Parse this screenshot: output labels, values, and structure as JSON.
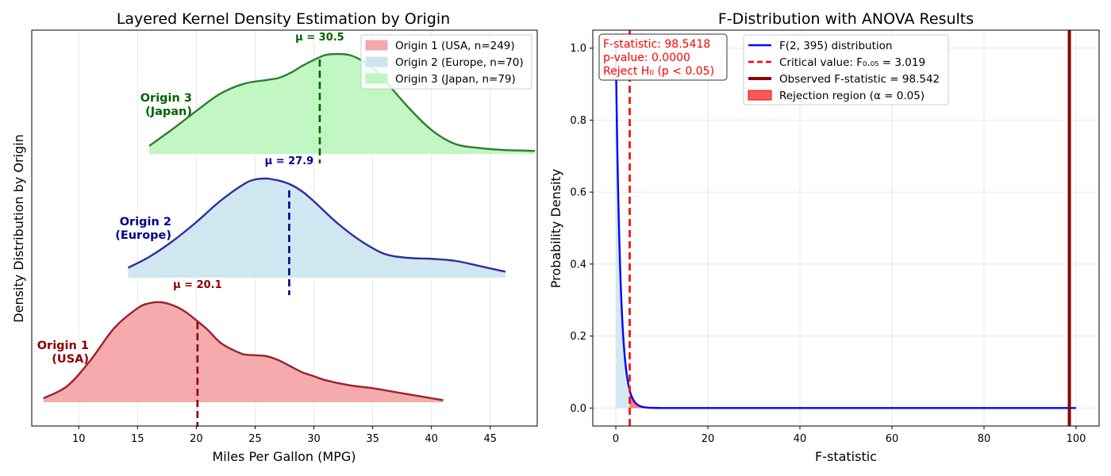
{
  "chart_data": [
    {
      "type": "area",
      "title": "Layered Kernel Density Estimation by Origin",
      "xlabel": "Miles Per Gallon (MPG)",
      "ylabel": "Density Distribution by Origin",
      "xlim": [
        6,
        49
      ],
      "xticks": [
        10,
        15,
        20,
        25,
        30,
        35,
        40,
        45
      ],
      "grid": true,
      "legend_position": "top-right",
      "series": [
        {
          "name": "Origin 1 (USA, n=249)",
          "label_line1": "Origin 1",
          "label_line2": "(USA)",
          "mean_label": "μ = 20.1",
          "mean": 20.1,
          "fill": "#f4a7a9",
          "stroke": "#9b2226",
          "text_color": "#8b0000",
          "x": [
            7,
            9,
            11,
            13,
            15,
            16,
            17,
            18,
            19,
            20,
            21,
            22,
            23,
            24,
            25,
            26,
            27,
            28,
            29,
            30,
            31,
            33,
            35,
            37,
            39,
            41
          ],
          "density": [
            0.04,
            0.16,
            0.42,
            0.74,
            0.94,
            0.99,
            1.0,
            0.97,
            0.91,
            0.82,
            0.72,
            0.6,
            0.53,
            0.48,
            0.47,
            0.46,
            0.42,
            0.36,
            0.3,
            0.26,
            0.22,
            0.17,
            0.14,
            0.1,
            0.06,
            0.02
          ]
        },
        {
          "name": "Origin 2 (Europe, n=70)",
          "label_line1": "Origin 2",
          "label_line2": "(Europe)",
          "mean_label": "μ = 27.9",
          "mean": 27.9,
          "fill": "#cde6f0",
          "stroke": "#2b2e9b",
          "text_color": "#00008b",
          "x": [
            14.2,
            16,
            18,
            20,
            22,
            24,
            25,
            26,
            26.5,
            27,
            28,
            29,
            30,
            32,
            34,
            36,
            38,
            40,
            42,
            44,
            46.3
          ],
          "density": [
            0.1,
            0.21,
            0.37,
            0.56,
            0.77,
            0.94,
            0.99,
            1.0,
            0.99,
            0.98,
            0.94,
            0.87,
            0.77,
            0.55,
            0.37,
            0.24,
            0.2,
            0.19,
            0.17,
            0.12,
            0.06
          ]
        },
        {
          "name": "Origin 3 (Japan, n=79)",
          "label_line1": "Origin 3",
          "label_line2": "(Japan)",
          "mean_label": "μ = 30.5",
          "mean": 30.5,
          "fill": "#bff5bf",
          "stroke": "#2e7d32",
          "text_color": "#006400",
          "x": [
            16,
            18,
            20,
            22,
            24,
            26,
            27,
            28,
            29,
            30,
            31,
            32,
            33,
            34,
            35,
            36,
            38,
            40,
            42,
            44,
            46,
            48.8
          ],
          "density": [
            0.08,
            0.25,
            0.43,
            0.6,
            0.7,
            0.74,
            0.76,
            0.81,
            0.88,
            0.94,
            0.99,
            1.0,
            0.99,
            0.94,
            0.86,
            0.74,
            0.47,
            0.24,
            0.1,
            0.06,
            0.04,
            0.03
          ]
        }
      ]
    },
    {
      "type": "line",
      "title": "F-Distribution with ANOVA Results",
      "xlabel": "F-statistic",
      "ylabel": "Probability Density",
      "xlim": [
        -5,
        105
      ],
      "ylim": [
        -0.05,
        1.05
      ],
      "xticks": [
        0,
        20,
        40,
        60,
        80,
        100
      ],
      "yticks": [
        0.0,
        0.2,
        0.4,
        0.6,
        0.8,
        1.0
      ],
      "grid": true,
      "legend_position": "top-center",
      "df1": 2,
      "df2": 395,
      "critical_value": 3.019,
      "f_statistic": 98.542,
      "x_max": 100,
      "curve_color": "#0000ff",
      "critical_color": "#ff0000",
      "observed_color": "#8b0000",
      "rejection_color": "#ff4444",
      "acceptance_fill": "#cde6f0",
      "legend": [
        "F(2, 395) distribution",
        "Critical value: F₀.₀₅ = 3.019",
        "Observed F-statistic = 98.542",
        "Rejection region (α = 0.05)"
      ],
      "annotation": [
        "F-statistic: 98.5418",
        "p-value: 0.0000",
        "Reject H₀ (p < 0.05)"
      ]
    }
  ]
}
